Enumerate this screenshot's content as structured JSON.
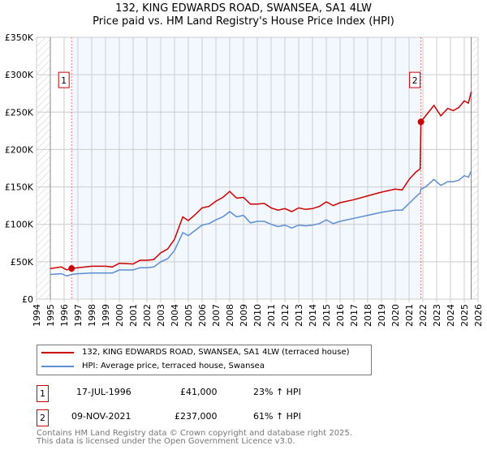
{
  "title_line1": "132, KING EDWARDS ROAD, SWANSEA, SA1 4LW",
  "title_line2": "Price paid vs. HM Land Registry's House Price Index (HPI)",
  "chart_data": {
    "type": "line",
    "title": "132, KING EDWARDS ROAD, SWANSEA, SA1 4LW — Price paid vs. HM Land Registry's House Price Index (HPI)",
    "xlim": [
      1994,
      2026
    ],
    "ylim": [
      0,
      350000
    ],
    "x_ticks": [
      "1994",
      "1995",
      "1996",
      "1997",
      "1998",
      "1999",
      "2000",
      "2001",
      "2002",
      "2003",
      "2004",
      "2005",
      "2006",
      "2007",
      "2008",
      "2009",
      "2010",
      "2011",
      "2012",
      "2013",
      "2014",
      "2015",
      "2016",
      "2017",
      "2018",
      "2019",
      "2020",
      "2021",
      "2022",
      "2023",
      "2024",
      "2025",
      "2026"
    ],
    "y_ticks": [
      {
        "v": 0,
        "label": "£0"
      },
      {
        "v": 50000,
        "label": "£50K"
      },
      {
        "v": 100000,
        "label": "£100K"
      },
      {
        "v": 150000,
        "label": "£150K"
      },
      {
        "v": 200000,
        "label": "£200K"
      },
      {
        "v": 250000,
        "label": "£250K"
      },
      {
        "v": 300000,
        "label": "£300K"
      },
      {
        "v": 350000,
        "label": "£350K"
      }
    ],
    "series": [
      {
        "name": "132, KING EDWARDS ROAD, SWANSEA, SA1 4LW (terraced house)",
        "color": "#cc0000",
        "x": [
          1995,
          1995.8,
          1996.2,
          1996.54,
          1997,
          1998,
          1999,
          1999.5,
          2000,
          2001,
          2001.5,
          2002,
          2002.5,
          2003,
          2003.5,
          2004,
          2004.3,
          2004.6,
          2005,
          2005.5,
          2006,
          2006.5,
          2007,
          2007.5,
          2008,
          2008.5,
          2009,
          2009.5,
          2010,
          2010.5,
          2011,
          2011.5,
          2012,
          2012.5,
          2013,
          2013.5,
          2014,
          2014.5,
          2015,
          2015.5,
          2016,
          2017,
          2018,
          2019,
          2020,
          2020.5,
          2021,
          2021.5,
          2021.8,
          2021.86,
          2022.2,
          2022.8,
          2023.3,
          2023.8,
          2024.2,
          2024.6,
          2025,
          2025.3,
          2025.5
        ],
        "y": [
          41000,
          43000,
          39000,
          41000,
          42000,
          44000,
          44000,
          43000,
          48000,
          47000,
          52000,
          52000,
          53000,
          62000,
          67000,
          80000,
          95000,
          110000,
          105000,
          113000,
          122000,
          124000,
          131000,
          136000,
          144000,
          135000,
          136000,
          127000,
          127000,
          128000,
          122000,
          119000,
          121000,
          117000,
          122000,
          120000,
          121000,
          124000,
          130000,
          125000,
          129000,
          133000,
          138000,
          143000,
          147000,
          146000,
          160000,
          170000,
          174000,
          237000,
          245000,
          259000,
          245000,
          255000,
          252000,
          256000,
          265000,
          262000,
          277000
        ]
      },
      {
        "name": "HPI: Average price, terraced house, Swansea",
        "color": "#5b8fd4",
        "x": [
          1995,
          1995.8,
          1996.2,
          1996.54,
          1997,
          1998,
          1999,
          1999.5,
          2000,
          2001,
          2001.5,
          2002,
          2002.5,
          2003,
          2003.5,
          2004,
          2004.3,
          2004.6,
          2005,
          2005.5,
          2006,
          2006.5,
          2007,
          2007.5,
          2008,
          2008.5,
          2009,
          2009.5,
          2010,
          2010.5,
          2011,
          2011.5,
          2012,
          2012.5,
          2013,
          2013.5,
          2014,
          2014.5,
          2015,
          2015.5,
          2016,
          2017,
          2018,
          2019,
          2020,
          2020.5,
          2021,
          2021.5,
          2021.8,
          2021.86,
          2022.2,
          2022.8,
          2023.3,
          2023.8,
          2024.2,
          2024.6,
          2025,
          2025.3,
          2025.5
        ],
        "y": [
          33000,
          34000,
          31000,
          33000,
          34000,
          35000,
          35000,
          35000,
          39000,
          39000,
          42000,
          42000,
          43000,
          50000,
          54000,
          65000,
          77000,
          89000,
          85000,
          92000,
          99000,
          101000,
          106000,
          110000,
          117000,
          110000,
          112000,
          102000,
          104000,
          104000,
          100000,
          97000,
          99000,
          95000,
          99000,
          98000,
          99000,
          101000,
          106000,
          101000,
          104000,
          108000,
          112000,
          116000,
          119000,
          119000,
          128000,
          137000,
          142000,
          147000,
          150000,
          160000,
          152000,
          157000,
          157000,
          159000,
          165000,
          163000,
          171000
        ]
      }
    ],
    "sales": [
      {
        "label": "1",
        "x": 1996.54,
        "y": 41000
      },
      {
        "label": "2",
        "x": 2021.86,
        "y": 237000
      }
    ]
  },
  "legend": {
    "red": "132, KING EDWARDS ROAD, SWANSEA, SA1 4LW (terraced house)",
    "blue": "HPI: Average price, terraced house, Swansea"
  },
  "transactions": [
    {
      "num": "1",
      "date": "17-JUL-1996",
      "price": "£41,000",
      "hpi": "23% ↑ HPI"
    },
    {
      "num": "2",
      "date": "09-NOV-2021",
      "price": "£237,000",
      "hpi": "61% ↑ HPI"
    }
  ],
  "footer": {
    "line1": "Contains HM Land Registry data © Crown copyright and database right 2025.",
    "line2": "This data is licensed under the Open Government Licence v3.0."
  }
}
